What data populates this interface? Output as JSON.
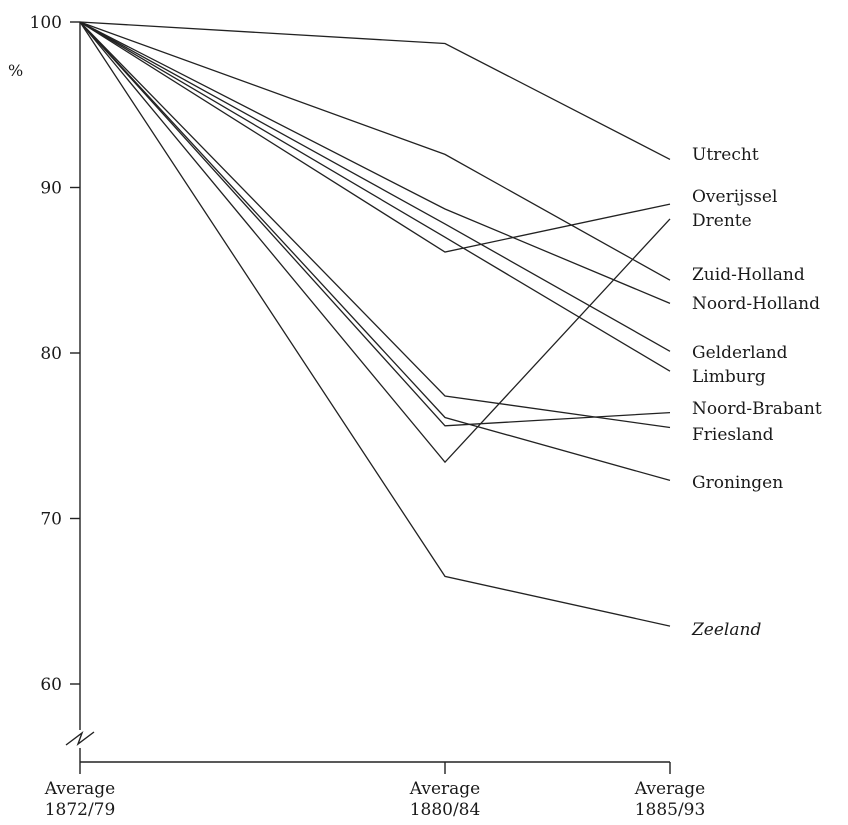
{
  "chart_data": {
    "type": "line",
    "title": "",
    "xlabel": "",
    "ylabel": "%",
    "unit_label": "%",
    "categories": [
      "Average\n1872/79",
      "Average\n1880/84",
      "Average\n1885/93"
    ],
    "yticks": [
      60,
      70,
      80,
      90,
      100
    ],
    "ylim": [
      55.5,
      100
    ],
    "axis_break": true,
    "grid": false,
    "legend": "labels at right end of each line",
    "series": [
      {
        "name": "Utrecht",
        "values": [
          100,
          98.7,
          91.7
        ],
        "italic": false
      },
      {
        "name": "Overijssel",
        "values": [
          100,
          86.1,
          89.0
        ],
        "italic": false
      },
      {
        "name": "Drente",
        "values": [
          100,
          73.4,
          88.1
        ],
        "italic": false
      },
      {
        "name": "Zuid-Holland",
        "values": [
          100,
          92.0,
          84.4
        ],
        "italic": false
      },
      {
        "name": "Noord-Holland",
        "values": [
          100,
          88.7,
          83.0
        ],
        "italic": false
      },
      {
        "name": "Gelderland",
        "values": [
          100,
          87.8,
          80.1
        ],
        "italic": false
      },
      {
        "name": "Limburg",
        "values": [
          100,
          87.0,
          78.9
        ],
        "italic": false
      },
      {
        "name": "Noord-Brabant",
        "values": [
          100,
          75.6,
          76.4
        ],
        "italic": false
      },
      {
        "name": "Friesland",
        "values": [
          100,
          77.4,
          75.5
        ],
        "italic": false
      },
      {
        "name": "Groningen",
        "values": [
          100,
          76.1,
          72.3
        ],
        "italic": false
      },
      {
        "name": "Zeeland",
        "values": [
          100,
          66.5,
          63.5
        ],
        "italic": true
      }
    ]
  }
}
